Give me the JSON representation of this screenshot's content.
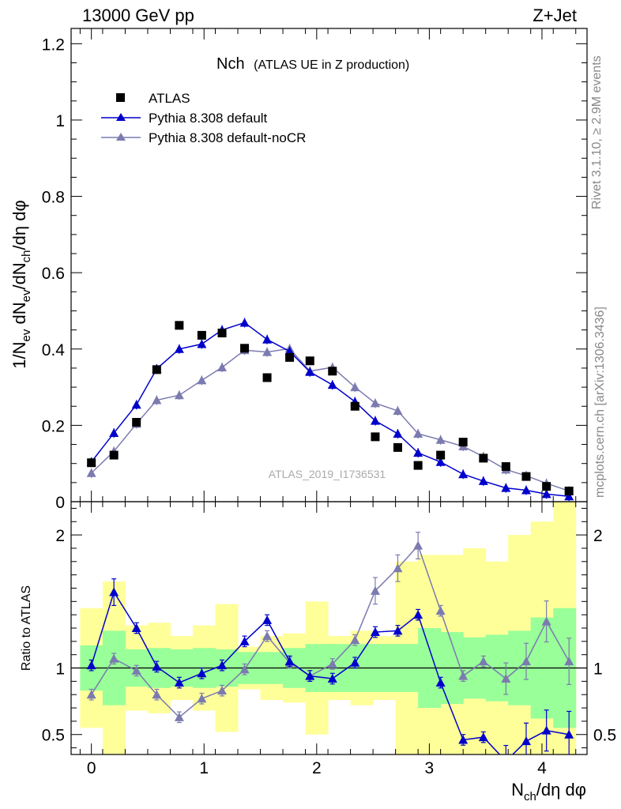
{
  "header": {
    "left": "13000 GeV pp",
    "right": "Z+Jet"
  },
  "side_labels": {
    "rivet": "Rivet 3.1.10, ≥ 2.9M events",
    "mcplots": "mcplots.cern.ch [arXiv:1306.3436]"
  },
  "plot_title": {
    "main": "Nch",
    "sub": "(ATLAS UE in Z production)"
  },
  "analysis_id": "ATLAS_2019_I1736531",
  "colors": {
    "data": "#000000",
    "default": "#0000cc",
    "nocr": "#7b7bb0",
    "band_green": "#99ff99",
    "band_yellow": "#ffff99"
  },
  "chart_data": [
    {
      "type": "scatter",
      "name": "main-panel",
      "ylabel": "1/N_ev dN_ev/dN_ch/dη dφ",
      "ylim": [
        0,
        1.24
      ],
      "xlim": [
        -0.18,
        4.4
      ],
      "yticks": [
        0,
        0.2,
        0.4,
        0.6,
        0.8,
        1,
        1.2
      ],
      "ytick_labels": [
        "0",
        "0.2",
        "0.4",
        "0.6",
        "0.8",
        "1",
        "1.2"
      ],
      "x": [
        0,
        0.2,
        0.4,
        0.58,
        0.78,
        0.98,
        1.16,
        1.36,
        1.56,
        1.76,
        1.94,
        2.14,
        2.34,
        2.52,
        2.72,
        2.9,
        3.1,
        3.3,
        3.48,
        3.68,
        3.86,
        4.04,
        4.24
      ],
      "series": [
        {
          "name": "ATLAS",
          "marker": "square",
          "values": [
            0.102,
            0.122,
            0.208,
            0.346,
            0.462,
            0.436,
            0.442,
            0.402,
            0.325,
            0.378,
            0.369,
            0.342,
            0.25,
            0.17,
            0.142,
            0.095,
            0.122,
            0.156,
            0.114,
            0.092,
            0.066,
            0.04,
            0.028
          ]
        },
        {
          "name": "Pythia 8.308 default",
          "marker": "triangle",
          "values": [
            0.104,
            0.18,
            0.254,
            0.348,
            0.4,
            0.413,
            0.45,
            0.469,
            0.425,
            0.394,
            0.34,
            0.306,
            0.262,
            0.212,
            0.178,
            0.128,
            0.104,
            0.072,
            0.054,
            0.036,
            0.03,
            0.02,
            0.014
          ]
        },
        {
          "name": "Pythia 8.308 default-noCR",
          "marker": "triangle",
          "values": [
            0.075,
            0.132,
            0.204,
            0.266,
            0.279,
            0.318,
            0.352,
            0.397,
            0.392,
            0.401,
            0.342,
            0.352,
            0.3,
            0.258,
            0.238,
            0.178,
            0.162,
            0.145,
            0.118,
            0.084,
            0.068,
            0.048,
            0.028
          ]
        }
      ]
    },
    {
      "type": "line",
      "name": "ratio-panel",
      "ylabel": "Ratio to ATLAS",
      "xlabel": "N_ch/dη dφ",
      "ylim": [
        0.35,
        2.25
      ],
      "xlim": [
        -0.18,
        4.4
      ],
      "yticks": [
        0.5,
        1,
        2
      ],
      "ytick_labels": [
        "0.5",
        "1",
        "2"
      ],
      "xticks": [
        0,
        1,
        2,
        3,
        4
      ],
      "xtick_labels": [
        "0",
        "1",
        "2",
        "3",
        "4"
      ],
      "x": [
        0,
        0.2,
        0.4,
        0.58,
        0.78,
        0.98,
        1.16,
        1.36,
        1.56,
        1.76,
        1.94,
        2.14,
        2.34,
        2.52,
        2.72,
        2.9,
        3.1,
        3.3,
        3.48,
        3.68,
        3.86,
        4.04,
        4.24
      ],
      "series": [
        {
          "name": "Pythia 8.308 default",
          "values": [
            1.02,
            1.57,
            1.3,
            1.01,
            0.89,
            0.96,
            1.02,
            1.2,
            1.36,
            1.05,
            0.94,
            0.92,
            1.04,
            1.27,
            1.28,
            1.4,
            0.89,
            0.46,
            0.48,
            0.3,
            0.45,
            0.53,
            0.5
          ]
        },
        {
          "name": "Pythia 8.308 default-noCR",
          "values": [
            0.8,
            1.07,
            0.98,
            0.8,
            0.63,
            0.77,
            0.83,
            0.99,
            1.24,
            1.04,
            0.94,
            1.03,
            1.21,
            1.58,
            1.75,
            1.92,
            1.43,
            0.94,
            1.05,
            0.92,
            1.05,
            1.35,
            1.05
          ]
        }
      ],
      "bands": {
        "edges": [
          -0.1,
          0.1,
          0.3,
          0.5,
          0.7,
          0.9,
          1.1,
          1.3,
          1.5,
          1.7,
          1.9,
          2.1,
          2.3,
          2.5,
          2.7,
          2.9,
          3.1,
          3.3,
          3.5,
          3.7,
          3.9,
          4.1,
          4.3
        ],
        "green": [
          [
            0.83,
            1.17
          ],
          [
            0.72,
            1.28
          ],
          [
            0.86,
            1.14
          ],
          [
            0.85,
            1.15
          ],
          [
            0.86,
            1.14
          ],
          [
            0.85,
            1.15
          ],
          [
            0.86,
            1.14
          ],
          [
            0.88,
            1.12
          ],
          [
            0.88,
            1.12
          ],
          [
            0.85,
            1.15
          ],
          [
            0.82,
            1.18
          ],
          [
            0.82,
            1.18
          ],
          [
            0.82,
            1.18
          ],
          [
            0.82,
            1.18
          ],
          [
            0.82,
            1.18
          ],
          [
            0.7,
            1.3
          ],
          [
            0.73,
            1.27
          ],
          [
            0.77,
            1.23
          ],
          [
            0.75,
            1.25
          ],
          [
            0.72,
            1.28
          ],
          [
            0.62,
            1.38
          ],
          [
            0.55,
            1.45
          ],
          [
            0.35,
            1.65
          ]
        ],
        "yellow": [
          [
            0.55,
            1.45
          ],
          [
            0.35,
            1.65
          ],
          [
            0.68,
            1.32
          ],
          [
            0.66,
            1.34
          ],
          [
            0.76,
            1.24
          ],
          [
            0.68,
            1.32
          ],
          [
            0.52,
            1.48
          ],
          [
            0.84,
            1.16
          ],
          [
            0.76,
            1.24
          ],
          [
            0.74,
            1.26
          ],
          [
            0.5,
            1.5
          ],
          [
            0.76,
            1.24
          ],
          [
            0.72,
            1.28
          ],
          [
            0.76,
            1.24
          ],
          [
            0.35,
            1.8
          ],
          [
            0.35,
            1.85
          ],
          [
            0.35,
            1.85
          ],
          [
            0.35,
            1.9
          ],
          [
            0.35,
            1.8
          ],
          [
            0.35,
            2.0
          ],
          [
            0.35,
            2.1
          ],
          [
            0.35,
            2.25
          ],
          [
            0.35,
            2.25
          ]
        ]
      }
    }
  ]
}
